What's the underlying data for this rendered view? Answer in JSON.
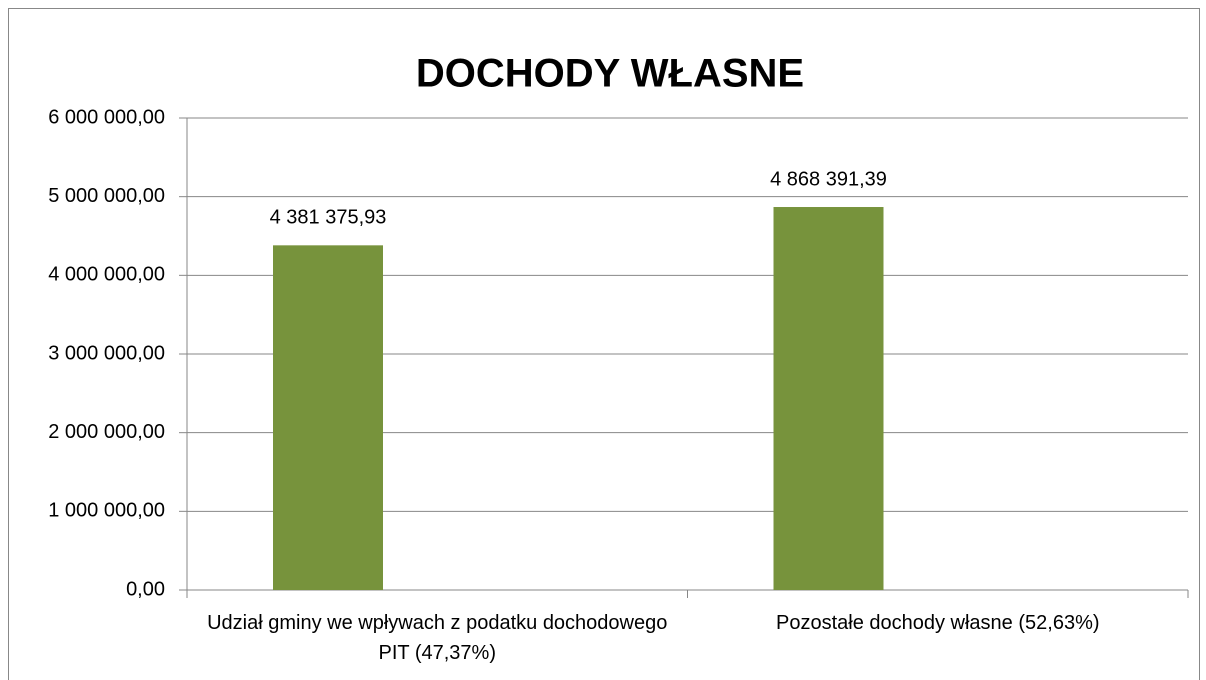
{
  "chart_data": {
    "type": "bar",
    "title": "DOCHODY WŁASNE",
    "categories": [
      "Udział gminy we wpływach z podatku dochodowego PIT (47,37%)",
      "Pozostałe dochody własne (52,63%)"
    ],
    "values": [
      4381375.93,
      4868391.39
    ],
    "value_labels": [
      "4 381 375,93",
      "4 868 391,39"
    ],
    "color": "#77933c",
    "ylim": [
      0,
      6000000
    ],
    "yticks": [
      {
        "value": 0,
        "label": "0,00"
      },
      {
        "value": 1000000,
        "label": "1 000 000,00"
      },
      {
        "value": 2000000,
        "label": "2 000 000,00"
      },
      {
        "value": 3000000,
        "label": "3 000 000,00"
      },
      {
        "value": 4000000,
        "label": "4 000 000,00"
      },
      {
        "value": 5000000,
        "label": "5 000 000,00"
      },
      {
        "value": 6000000,
        "label": "6 000 000,00"
      }
    ],
    "grid": true
  }
}
